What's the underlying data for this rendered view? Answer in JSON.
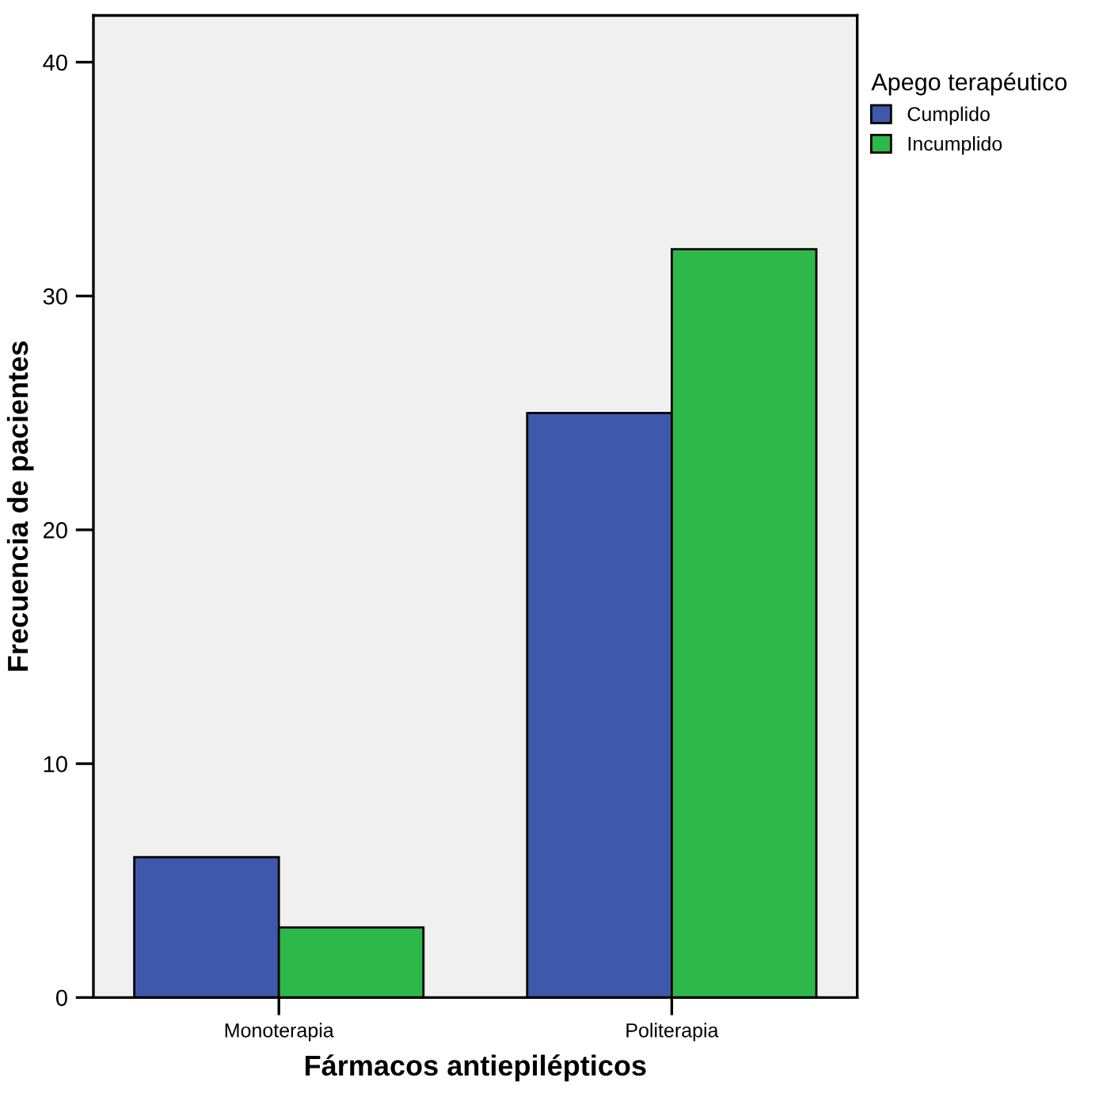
{
  "chart_data": {
    "type": "bar",
    "xlabel": "Fármacos antiepilépticos",
    "ylabel": "Frecuencia de pacientes",
    "legend_title": "Apego terapéutico",
    "categories": [
      "Monoterapia",
      "Politerapia"
    ],
    "series": [
      {
        "name": "Cumplido",
        "color": "#3e58ac",
        "values": [
          6,
          25
        ]
      },
      {
        "name": "Incumplido",
        "color": "#2eb84a",
        "values": [
          3,
          32
        ]
      }
    ],
    "ylim": [
      0,
      42
    ],
    "yticks": [
      0,
      10,
      20,
      30,
      40
    ],
    "grid": false,
    "legend": "right"
  }
}
